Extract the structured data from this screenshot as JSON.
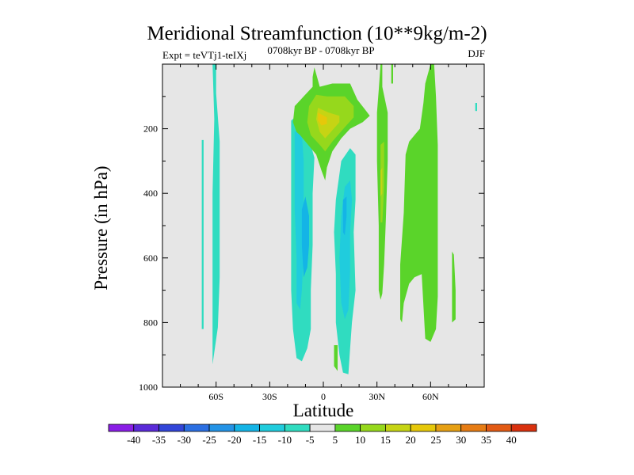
{
  "chart_data": {
    "type": "contour",
    "title": "Meridional Streamfunction (10**9kg/m-2)",
    "left_string": "Expt = teVTj1-teIXj",
    "center_string": "0708kyr BP - 0708kyr BP",
    "right_string": "DJF",
    "xlabel": "Latitude",
    "ylabel": "Pressure (in hPa)",
    "xlim": [
      -90,
      90
    ],
    "ylim": [
      1000,
      0
    ],
    "x_ticks": [
      -60,
      -30,
      0,
      30,
      60
    ],
    "x_tick_labels": [
      "60S",
      "30S",
      "0",
      "30N",
      "60N"
    ],
    "y_ticks": [
      200,
      400,
      600,
      800,
      1000
    ],
    "y_tick_labels": [
      "200",
      "400",
      "600",
      "800",
      "1000"
    ],
    "background_color": "#e6e6e6",
    "colorbar": {
      "levels": [
        -40,
        -35,
        -30,
        -25,
        -20,
        -15,
        -10,
        -5,
        5,
        10,
        15,
        20,
        25,
        30,
        35,
        40
      ],
      "level_labels": [
        "-40",
        "-35",
        "-30",
        "-25",
        "-20",
        "-15",
        "-10",
        "-5",
        "5",
        "10",
        "15",
        "20",
        "25",
        "30",
        "35",
        "40"
      ],
      "colors": [
        "#8a1ee6",
        "#5a2ad8",
        "#3245d8",
        "#2b6fe2",
        "#2393e6",
        "#14b4e6",
        "#20ccdd",
        "#30dcc0",
        "#e6e6e6",
        "#5ad42a",
        "#96d81c",
        "#c6d414",
        "#e6c80a",
        "#e6a014",
        "#e67c14",
        "#e25a14",
        "#d9310e"
      ]
    },
    "regions": [
      {
        "name": "sh-highlat-cell",
        "color": "#30dcc0",
        "points": [
          [
            -62,
            0
          ],
          [
            -60,
            0
          ],
          [
            -60,
            90
          ],
          [
            -58,
            240
          ],
          [
            -58,
            660
          ],
          [
            -59,
            815
          ],
          [
            -62,
            930
          ],
          [
            -62,
            795
          ],
          [
            -62,
            400
          ],
          [
            -61,
            170
          ]
        ]
      },
      {
        "name": "sh-highlat-cell-thin",
        "color": "#30dcc0",
        "points": [
          [
            -68,
            235
          ],
          [
            -67,
            235
          ],
          [
            -67,
            820
          ],
          [
            -68,
            820
          ]
        ]
      },
      {
        "name": "tropical-south-cell-outer",
        "color": "#30dcc0",
        "points": [
          [
            -18,
            175
          ],
          [
            -15,
            160
          ],
          [
            -11,
            175
          ],
          [
            -7,
            250
          ],
          [
            -5,
            290
          ],
          [
            -6,
            400
          ],
          [
            -6,
            560
          ],
          [
            -7,
            700
          ],
          [
            -7,
            820
          ],
          [
            -9,
            880
          ],
          [
            -12,
            920
          ],
          [
            -15,
            910
          ],
          [
            -17,
            820
          ],
          [
            -18,
            700
          ],
          [
            -18,
            560
          ],
          [
            -18,
            420
          ],
          [
            -18,
            260
          ]
        ]
      },
      {
        "name": "tropical-south-cell-mid",
        "color": "#20ccdd",
        "points": [
          [
            -16,
            210
          ],
          [
            -14,
            200
          ],
          [
            -12,
            215
          ],
          [
            -11,
            300
          ],
          [
            -11,
            420
          ],
          [
            -11,
            580
          ],
          [
            -12,
            700
          ],
          [
            -13,
            760
          ],
          [
            -15,
            740
          ],
          [
            -15,
            600
          ],
          [
            -16,
            450
          ],
          [
            -16,
            300
          ]
        ]
      },
      {
        "name": "tropical-south-cell-inner",
        "color": "#14b4e6",
        "points": [
          [
            -12,
            450
          ],
          [
            -10,
            410
          ],
          [
            -8,
            470
          ],
          [
            -8,
            560
          ],
          [
            -9,
            630
          ],
          [
            -11,
            660
          ],
          [
            -12,
            560
          ]
        ]
      },
      {
        "name": "tropical-north-cell-outer",
        "color": "#30dcc0",
        "points": [
          [
            10,
            300
          ],
          [
            15,
            260
          ],
          [
            18,
            280
          ],
          [
            18,
            420
          ],
          [
            17,
            520
          ],
          [
            18,
            700
          ],
          [
            16,
            800
          ],
          [
            15,
            880
          ],
          [
            14,
            960
          ],
          [
            11,
            955
          ],
          [
            9,
            900
          ],
          [
            7,
            800
          ],
          [
            7,
            650
          ],
          [
            6,
            520
          ],
          [
            7,
            420
          ]
        ]
      },
      {
        "name": "tropical-north-cell-mid",
        "color": "#20ccdd",
        "points": [
          [
            12,
            380
          ],
          [
            15,
            360
          ],
          [
            16,
            420
          ],
          [
            15,
            520
          ],
          [
            15,
            640
          ],
          [
            14,
            760
          ],
          [
            12,
            790
          ],
          [
            10,
            740
          ],
          [
            9,
            600
          ],
          [
            10,
            470
          ]
        ]
      },
      {
        "name": "tropical-north-cell-inner",
        "color": "#14b4e6",
        "points": [
          [
            11,
            420
          ],
          [
            13,
            410
          ],
          [
            13,
            470
          ],
          [
            12,
            530
          ],
          [
            11,
            520
          ]
        ]
      },
      {
        "name": "equatorial-upper-positive-outer",
        "color": "#5ad42a",
        "points": [
          [
            -5,
            10
          ],
          [
            -2,
            70
          ],
          [
            5,
            60
          ],
          [
            15,
            60
          ],
          [
            19,
            110
          ],
          [
            24,
            145
          ],
          [
            26,
            160
          ],
          [
            22,
            180
          ],
          [
            15,
            200
          ],
          [
            10,
            230
          ],
          [
            5,
            270
          ],
          [
            2,
            320
          ],
          [
            1,
            360
          ],
          [
            -1,
            330
          ],
          [
            -4,
            280
          ],
          [
            -10,
            240
          ],
          [
            -13,
            220
          ],
          [
            -15,
            210
          ],
          [
            -17,
            180
          ],
          [
            -16,
            130
          ],
          [
            -11,
            100
          ],
          [
            -6,
            70
          ],
          [
            -6,
            40
          ],
          [
            -5,
            10
          ]
        ]
      },
      {
        "name": "equatorial-upper-positive-mid",
        "color": "#96d81c",
        "points": [
          [
            -4,
            95
          ],
          [
            2,
            100
          ],
          [
            12,
            100
          ],
          [
            17,
            130
          ],
          [
            17,
            165
          ],
          [
            12,
            195
          ],
          [
            5,
            240
          ],
          [
            1,
            270
          ],
          [
            -2,
            250
          ],
          [
            -7,
            220
          ],
          [
            -9,
            180
          ],
          [
            -8,
            130
          ]
        ]
      },
      {
        "name": "equatorial-upper-positive-inner",
        "color": "#c6d414",
        "points": [
          [
            -3,
            135
          ],
          [
            3,
            150
          ],
          [
            9,
            160
          ],
          [
            9,
            180
          ],
          [
            5,
            205
          ],
          [
            1,
            230
          ],
          [
            -2,
            210
          ],
          [
            -4,
            170
          ]
        ]
      },
      {
        "name": "equatorial-upper-positive-core",
        "color": "#e6c80a",
        "points": [
          [
            -3,
            150
          ],
          [
            2,
            165
          ],
          [
            2,
            185
          ],
          [
            -1,
            190
          ],
          [
            -3,
            175
          ]
        ]
      },
      {
        "name": "equatorial-lower-positive",
        "color": "#5ad42a",
        "points": [
          [
            6,
            870
          ],
          [
            8,
            870
          ],
          [
            8,
            950
          ],
          [
            6,
            935
          ]
        ]
      },
      {
        "name": "nh-subtropical-cell",
        "color": "#5ad42a",
        "points": [
          [
            32,
            0
          ],
          [
            33,
            0
          ],
          [
            33,
            70
          ],
          [
            36,
            150
          ],
          [
            36,
            300
          ],
          [
            35,
            480
          ],
          [
            34,
            620
          ],
          [
            33,
            710
          ],
          [
            32,
            730
          ],
          [
            31,
            700
          ],
          [
            31,
            500
          ],
          [
            30,
            300
          ],
          [
            30,
            150
          ],
          [
            31,
            80
          ]
        ]
      },
      {
        "name": "nh-subtropical-cell-inner",
        "color": "#96d81c",
        "points": [
          [
            32,
            250
          ],
          [
            34,
            240
          ],
          [
            34,
            380
          ],
          [
            33,
            490
          ],
          [
            32,
            490
          ],
          [
            32,
            380
          ]
        ]
      },
      {
        "name": "nh-subtropical-cell-core",
        "color": "#c6d414",
        "points": [
          [
            32,
            330
          ],
          [
            33,
            320
          ],
          [
            33,
            400
          ],
          [
            32,
            410
          ]
        ]
      },
      {
        "name": "nh-subtropical-thin",
        "color": "#5ad42a",
        "points": [
          [
            38,
            0
          ],
          [
            39,
            0
          ],
          [
            39,
            60
          ],
          [
            38,
            60
          ]
        ]
      },
      {
        "name": "nh-midlat-cell",
        "color": "#5ad42a",
        "points": [
          [
            60,
            0
          ],
          [
            62,
            0
          ],
          [
            63,
            100
          ],
          [
            64,
            250
          ],
          [
            64,
            400
          ],
          [
            64,
            550
          ],
          [
            64,
            720
          ],
          [
            63,
            820
          ],
          [
            60,
            860
          ],
          [
            57,
            850
          ],
          [
            55,
            650
          ],
          [
            51,
            660
          ],
          [
            48,
            680
          ],
          [
            45,
            740
          ],
          [
            44,
            800
          ],
          [
            43,
            790
          ],
          [
            43,
            620
          ],
          [
            45,
            460
          ],
          [
            46,
            280
          ],
          [
            48,
            240
          ],
          [
            51,
            220
          ],
          [
            54,
            200
          ],
          [
            56,
            120
          ],
          [
            57,
            60
          ]
        ]
      },
      {
        "name": "nh-highlat-cell",
        "color": "#5ad42a",
        "points": [
          [
            72,
            580
          ],
          [
            73,
            590
          ],
          [
            74,
            700
          ],
          [
            74,
            790
          ],
          [
            72,
            800
          ],
          [
            72,
            700
          ]
        ]
      },
      {
        "name": "nh-polar-thin",
        "color": "#30dcc0",
        "points": [
          [
            85,
            120
          ],
          [
            86,
            120
          ],
          [
            86,
            145
          ],
          [
            85,
            145
          ]
        ]
      }
    ]
  }
}
